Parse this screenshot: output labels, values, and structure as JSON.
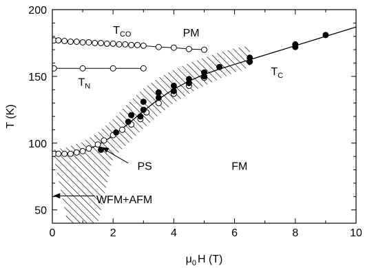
{
  "chart_data": {
    "type": "scatter",
    "title": "",
    "xlabel": {
      "base": "μ",
      "sub": "0",
      "rest": "H (T)"
    },
    "ylabel": "T (K)",
    "xlim": [
      0,
      10
    ],
    "ylim": [
      40,
      200
    ],
    "xticks": [
      0,
      2,
      4,
      6,
      8,
      10
    ],
    "yticks": [
      50,
      100,
      150,
      200
    ],
    "grid": false,
    "series": [
      {
        "key": "t_co",
        "marker": "open-circle",
        "connected": true,
        "x": [
          0.05,
          0.2,
          0.4,
          0.6,
          0.8,
          1.0,
          1.2,
          1.4,
          1.6,
          1.8,
          2.0,
          2.2,
          2.4,
          2.6,
          2.8,
          3.0,
          3.5,
          4.0,
          4.5,
          5.0
        ],
        "y": [
          177,
          177,
          176.5,
          176,
          176,
          175.5,
          175.5,
          175,
          175,
          174.5,
          174.5,
          174,
          174,
          173.5,
          173.5,
          173,
          172,
          171.5,
          170.5,
          170
        ]
      },
      {
        "key": "t_n",
        "marker": "open-circle",
        "connected": true,
        "x": [
          0.05,
          1.0,
          2.0,
          3.0
        ],
        "y": [
          156,
          156,
          156,
          156
        ]
      },
      {
        "key": "low_branch",
        "marker": "open-circle",
        "connected": false,
        "x": [
          0.05,
          0.2,
          0.4,
          0.6,
          0.8,
          1.0,
          1.2,
          1.5,
          1.7,
          2.0,
          2.3,
          2.6,
          2.9,
          3.1,
          3.5,
          4.0,
          4.5,
          5.0
        ],
        "y": [
          92,
          92,
          92,
          92,
          93,
          94,
          96,
          99,
          102,
          106,
          110,
          114,
          118,
          123,
          130,
          137,
          143,
          149
        ]
      },
      {
        "key": "t_c",
        "marker": "filled-circle",
        "connected": false,
        "x": [
          1.6,
          2.1,
          2.5,
          2.6,
          2.9,
          3.0,
          3.0,
          3.5,
          3.5,
          4.0,
          4.0,
          4.5,
          4.5,
          5.0,
          5.0,
          5.5,
          6.5,
          6.5,
          8.0,
          8.0,
          9.0
        ],
        "y": [
          95,
          108,
          116,
          121,
          120,
          125,
          131,
          134,
          138,
          139,
          143,
          145,
          148,
          150,
          153,
          157,
          161,
          164,
          172,
          174,
          181
        ]
      }
    ],
    "fit_curve": {
      "x": [
        0.0,
        0.5,
        1.0,
        1.5,
        2.0,
        2.5,
        3.0,
        3.5,
        4.0,
        4.5,
        5.0,
        5.5,
        6.0,
        6.5,
        7.0,
        7.5,
        8.0,
        8.5,
        9.0,
        9.5,
        10.0
      ],
      "y": [
        92,
        92.5,
        94,
        98.5,
        105.5,
        114.5,
        124,
        133,
        140.5,
        146.5,
        151.5,
        155.5,
        159,
        162.5,
        166,
        169.5,
        173,
        176.5,
        180,
        183.5,
        187
      ]
    },
    "hatched_region": {
      "upper": {
        "x": [
          0.0,
          0.5,
          1.0,
          1.5,
          2.0,
          2.5,
          3.0,
          3.5,
          4.0,
          4.5,
          5.0,
          5.5,
          6.0,
          6.5
        ],
        "y": [
          95,
          97,
          101,
          108,
          118,
          130,
          141,
          149,
          155,
          160,
          164,
          168,
          171,
          173
        ]
      },
      "lower": {
        "x": [
          6.5,
          6.0,
          5.5,
          5.0,
          4.5,
          4.0,
          3.5,
          3.0,
          2.5,
          2.0,
          1.5
        ],
        "y": [
          157,
          153,
          148,
          143,
          137,
          130,
          121,
          111,
          100,
          89,
          40
        ]
      },
      "bottom_left_x": 0.5
    },
    "annotations": {
      "t_co": {
        "base": "T",
        "sub": "CO"
      },
      "pm": "PM",
      "t_n": {
        "base": "T",
        "sub": "N"
      },
      "t_c": {
        "base": "T",
        "sub": "C"
      },
      "ps": "PS",
      "fm": "FM",
      "wfm_afm": "WFM+AFM"
    }
  }
}
